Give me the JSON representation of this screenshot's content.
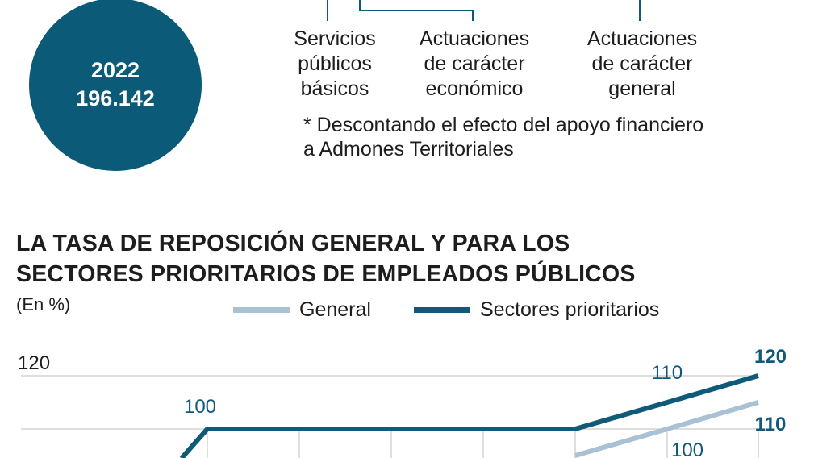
{
  "summary": {
    "year": "2022",
    "value": "196.142",
    "accent_color": "#0b5a78"
  },
  "categories": [
    {
      "label": "Servicios\npúblicos\nbásicos"
    },
    {
      "label": "Actuaciones\nde carácter\neconómico"
    },
    {
      "label": "Actuaciones\nde carácter\ngeneral"
    }
  ],
  "footnote": {
    "line1": "* Descontando el efecto del apoyo financiero",
    "line2": "a Admones Territoriales"
  },
  "chart_data": {
    "type": "line",
    "title_lines": [
      "LA TASA DE REPOSICIÓN GENERAL Y PARA LOS",
      "SECTORES PRIORITARIOS DE EMPLEADOS PÚBLICOS"
    ],
    "unit_label": "(En %)",
    "ylim": [
      90,
      121
    ],
    "y_ticks": [
      120
    ],
    "grid": true,
    "legend_position": "top",
    "series": [
      {
        "name": "General",
        "color": "#a9c1d4",
        "points": [
          [
            6,
            90
          ],
          [
            7,
            100
          ],
          [
            8,
            110
          ]
        ],
        "labels": [
          {
            "index": 1,
            "text": "100"
          },
          {
            "index": 2,
            "text": "110"
          }
        ]
      },
      {
        "name": "Sectores prioritarios",
        "color": "#0f5a78",
        "points": [
          [
            1,
            89
          ],
          [
            2,
            100
          ],
          [
            3,
            100
          ],
          [
            4,
            100
          ],
          [
            5,
            100
          ],
          [
            6,
            100
          ],
          [
            7,
            110
          ],
          [
            8,
            120
          ]
        ],
        "labels": [
          {
            "index": 1,
            "text": "100"
          },
          {
            "index": 6,
            "text": "110"
          },
          {
            "index": 7,
            "text": "120"
          }
        ]
      }
    ]
  }
}
